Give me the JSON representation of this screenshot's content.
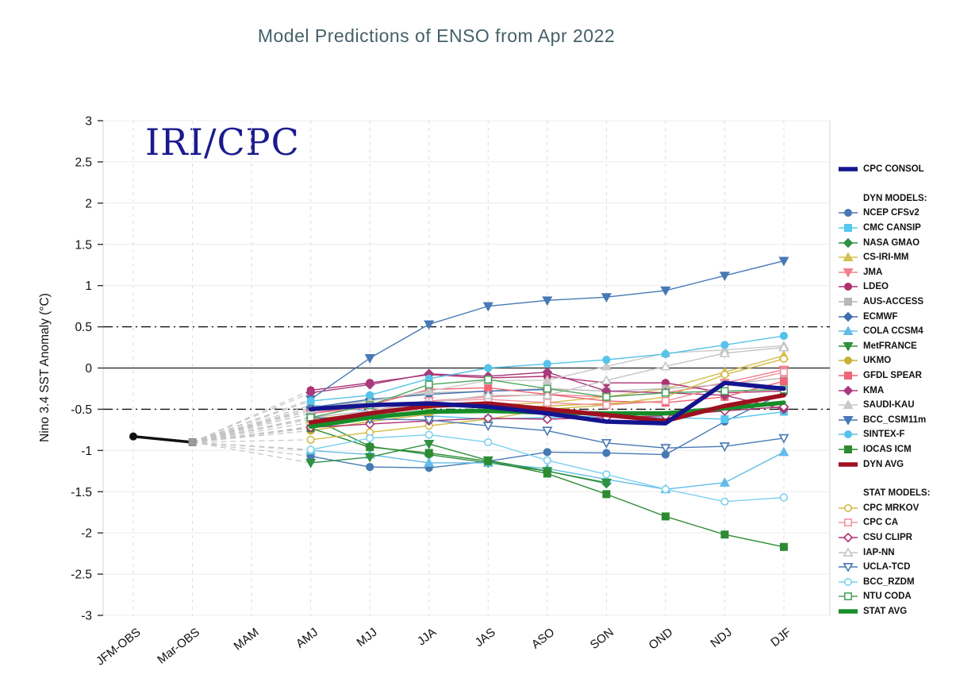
{
  "title": "Model Predictions of ENSO from Apr 2022",
  "watermark": "IRI/CPC",
  "legend": {
    "dyn_header": "DYN MODELS:",
    "stat_header": "STAT MODELS:"
  },
  "chart_data": {
    "type": "line",
    "title": "Model Predictions of ENSO from Apr 2022",
    "xlabel": "",
    "ylabel": "Nino 3.4 SST Anomaly (°C)",
    "ylim": [
      -3,
      3
    ],
    "y_tick_step": 0.5,
    "y_ticks": [
      3,
      2.5,
      2,
      1.5,
      1,
      0.5,
      0,
      -0.5,
      -1,
      -1.5,
      -2,
      -2.5,
      -3
    ],
    "categories": [
      "JFM-OBS",
      "Mar-OBS",
      "MAM",
      "AMJ",
      "MJJ",
      "JJA",
      "JAS",
      "ASO",
      "SON",
      "OND",
      "NDJ",
      "DJF"
    ],
    "forecast_start_category": "AMJ",
    "reference_lines": {
      "zero": 0,
      "el_nino_threshold": 0.5,
      "la_nina_threshold": -0.5
    },
    "grid": "on",
    "legend_position": "right",
    "observations": {
      "name": "OBS",
      "color": "#111111",
      "values": [
        -0.83,
        -0.9
      ]
    },
    "fan_origin": {
      "category": "Mar-OBS",
      "value": -0.9
    },
    "series": [
      {
        "name": "CPC CONSOL",
        "group": "consol",
        "color": "#14148f",
        "marker": "none",
        "open": false,
        "avg": true,
        "values": [
          -0.5,
          -0.45,
          -0.43,
          -0.47,
          -0.55,
          -0.65,
          -0.67,
          -0.18,
          -0.25
        ]
      },
      {
        "name": "NCEP CFSv2",
        "group": "dyn",
        "color": "#4779b4",
        "marker": "circle",
        "open": false,
        "avg": false,
        "values": [
          -1.07,
          -1.2,
          -1.21,
          -1.13,
          -1.02,
          -1.03,
          -1.05,
          -0.65,
          -0.3
        ]
      },
      {
        "name": "CMC CANSIP",
        "group": "dyn",
        "color": "#56c7ef",
        "marker": "square",
        "open": false,
        "avg": false,
        "values": [
          -0.45,
          -0.52,
          -0.58,
          -0.62,
          -0.6,
          -0.58,
          -0.6,
          -0.62,
          -0.53
        ]
      },
      {
        "name": "NASA GMAO",
        "group": "dyn",
        "color": "#2c9144",
        "marker": "diamond",
        "open": false,
        "avg": false,
        "values": [
          -0.6,
          -0.95,
          -1.05,
          -1.15,
          -1.25,
          -1.4,
          null,
          null,
          null
        ]
      },
      {
        "name": "CS-IRI-MM",
        "group": "dyn",
        "color": "#d3c050",
        "marker": "triangle-up",
        "open": false,
        "avg": false,
        "values": [
          -0.62,
          -0.55,
          -0.48,
          -0.45,
          -0.42,
          -0.35,
          -0.25,
          -0.05,
          0.15
        ]
      },
      {
        "name": "JMA",
        "group": "dyn",
        "color": "#f0808e",
        "marker": "triangle-down",
        "open": false,
        "avg": false,
        "values": [
          -0.55,
          -0.48,
          -0.4,
          -0.35,
          -0.32,
          -0.35,
          -0.3,
          -0.18,
          -0.02
        ]
      },
      {
        "name": "LDEO",
        "group": "dyn",
        "color": "#b03070",
        "marker": "circle",
        "open": false,
        "avg": false,
        "values": [
          -0.27,
          -0.18,
          -0.08,
          -0.12,
          -0.1,
          -0.18,
          -0.18,
          -0.3,
          -0.28
        ]
      },
      {
        "name": "AUS-ACCESS",
        "group": "dyn",
        "color": "#b8b8b8",
        "marker": "square",
        "open": false,
        "avg": false,
        "values": [
          -0.48,
          -0.4,
          -0.3,
          -0.28,
          -0.25,
          -0.28,
          -0.25,
          -0.2,
          -0.12
        ]
      },
      {
        "name": "ECMWF",
        "group": "dyn",
        "color": "#3f6fae",
        "marker": "diamond",
        "open": false,
        "avg": false,
        "values": [
          -0.48,
          -0.38,
          -0.32,
          -0.28,
          -0.26,
          null,
          null,
          null,
          null
        ]
      },
      {
        "name": "COLA CCSM4",
        "group": "dyn",
        "color": "#62bde8",
        "marker": "triangle-up",
        "open": false,
        "avg": false,
        "values": [
          -1.0,
          -1.05,
          -1.15,
          -1.15,
          -1.22,
          -1.35,
          -1.47,
          -1.39,
          -1.02
        ]
      },
      {
        "name": "MetFRANCE",
        "group": "dyn",
        "color": "#2f9140",
        "marker": "triangle-down",
        "open": false,
        "avg": false,
        "values": [
          -1.15,
          -1.08,
          -0.92,
          -1.12,
          -1.25,
          -1.39,
          null,
          null,
          null
        ]
      },
      {
        "name": "UKMO",
        "group": "dyn",
        "color": "#c9b038",
        "marker": "circle",
        "open": false,
        "avg": false,
        "values": [
          -0.76,
          -0.65,
          -0.56,
          -0.5,
          -0.46,
          -0.43,
          -0.4,
          null,
          null
        ]
      },
      {
        "name": "GFDL SPEAR",
        "group": "dyn",
        "color": "#ee6677",
        "marker": "square",
        "open": false,
        "avg": false,
        "values": [
          -0.55,
          -0.45,
          -0.26,
          -0.24,
          -0.32,
          -0.4,
          -0.42,
          -0.35,
          -0.16
        ]
      },
      {
        "name": "KMA",
        "group": "dyn",
        "color": "#a73a7d",
        "marker": "diamond",
        "open": false,
        "avg": false,
        "values": [
          -0.3,
          -0.2,
          -0.07,
          -0.1,
          -0.05,
          -0.28,
          -0.3,
          -0.33,
          -0.5
        ]
      },
      {
        "name": "SAUDI-KAU",
        "group": "dyn",
        "color": "#c9c9c9",
        "marker": "triangle-up",
        "open": false,
        "avg": false,
        "values": [
          -0.52,
          -0.4,
          -0.28,
          -0.15,
          -0.15,
          0.02,
          0.18,
          0.22,
          0.27
        ]
      },
      {
        "name": "BCC_CSM11m",
        "group": "dyn",
        "color": "#4779b4",
        "marker": "triangle-down",
        "open": false,
        "avg": false,
        "values": [
          -0.38,
          0.12,
          0.53,
          0.75,
          0.82,
          0.86,
          0.94,
          1.12,
          1.3
        ]
      },
      {
        "name": "SINTEX-F",
        "group": "dyn",
        "color": "#55c3ea",
        "marker": "circle",
        "open": false,
        "avg": false,
        "values": [
          -0.4,
          -0.33,
          -0.13,
          0.0,
          0.05,
          0.1,
          0.17,
          0.28,
          0.39
        ]
      },
      {
        "name": "IOCAS ICM",
        "group": "dyn",
        "color": "#2e8b33",
        "marker": "square",
        "open": false,
        "avg": false,
        "values": [
          -0.73,
          -0.96,
          -1.03,
          -1.13,
          -1.28,
          -1.53,
          -1.8,
          -2.02,
          -2.17
        ]
      },
      {
        "name": "DYN AVG",
        "group": "dyn",
        "color": "#9f1020",
        "marker": "none",
        "open": false,
        "avg": true,
        "values": [
          -0.66,
          -0.55,
          -0.46,
          -0.43,
          -0.5,
          -0.57,
          -0.64,
          -0.46,
          -0.33
        ]
      },
      {
        "name": "CPC MRKOV",
        "group": "stat",
        "color": "#d2bc45",
        "marker": "circle",
        "open": true,
        "avg": false,
        "values": [
          -0.87,
          -0.78,
          -0.7,
          -0.62,
          -0.5,
          -0.45,
          -0.35,
          -0.08,
          0.11
        ]
      },
      {
        "name": "CPC CA",
        "group": "stat",
        "color": "#f2929e",
        "marker": "square",
        "open": true,
        "avg": false,
        "values": [
          -0.6,
          -0.52,
          -0.4,
          -0.38,
          -0.42,
          -0.45,
          -0.4,
          -0.22,
          -0.05
        ]
      },
      {
        "name": "CSU CLIPR",
        "group": "stat",
        "color": "#b03070",
        "marker": "diamond",
        "open": true,
        "avg": false,
        "values": [
          -0.72,
          -0.68,
          -0.64,
          -0.61,
          -0.62,
          -0.6,
          -0.58,
          -0.52,
          -0.47
        ]
      },
      {
        "name": "IAP-NN",
        "group": "stat",
        "color": "#c4c4c4",
        "marker": "triangle-up",
        "open": true,
        "avg": false,
        "values": [
          -0.6,
          -0.52,
          -0.42,
          -0.33,
          -0.33,
          -0.15,
          0.02,
          0.18,
          0.25
        ]
      },
      {
        "name": "UCLA-TCD",
        "group": "stat",
        "color": "#4779b4",
        "marker": "triangle-down",
        "open": true,
        "avg": false,
        "values": [
          -0.6,
          -0.62,
          -0.63,
          -0.7,
          -0.76,
          -0.91,
          -0.97,
          -0.95,
          -0.85
        ]
      },
      {
        "name": "BCC_RZDM",
        "group": "stat",
        "color": "#7cd0f0",
        "marker": "circle",
        "open": true,
        "avg": false,
        "values": [
          -0.99,
          -0.85,
          -0.81,
          -0.9,
          -1.12,
          -1.29,
          -1.47,
          -1.62,
          -1.57
        ]
      },
      {
        "name": "NTU CODA",
        "group": "stat",
        "color": "#4ca45c",
        "marker": "square",
        "open": true,
        "avg": false,
        "values": [
          -0.6,
          -0.45,
          -0.2,
          -0.14,
          -0.25,
          -0.35,
          -0.3,
          -0.28,
          -0.26
        ]
      },
      {
        "name": "STAT AVG",
        "group": "stat",
        "color": "#168d28",
        "marker": "none",
        "open": false,
        "avg": true,
        "values": [
          -0.71,
          -0.6,
          -0.53,
          -0.52,
          -0.54,
          -0.55,
          -0.55,
          -0.49,
          -0.42
        ]
      }
    ]
  }
}
